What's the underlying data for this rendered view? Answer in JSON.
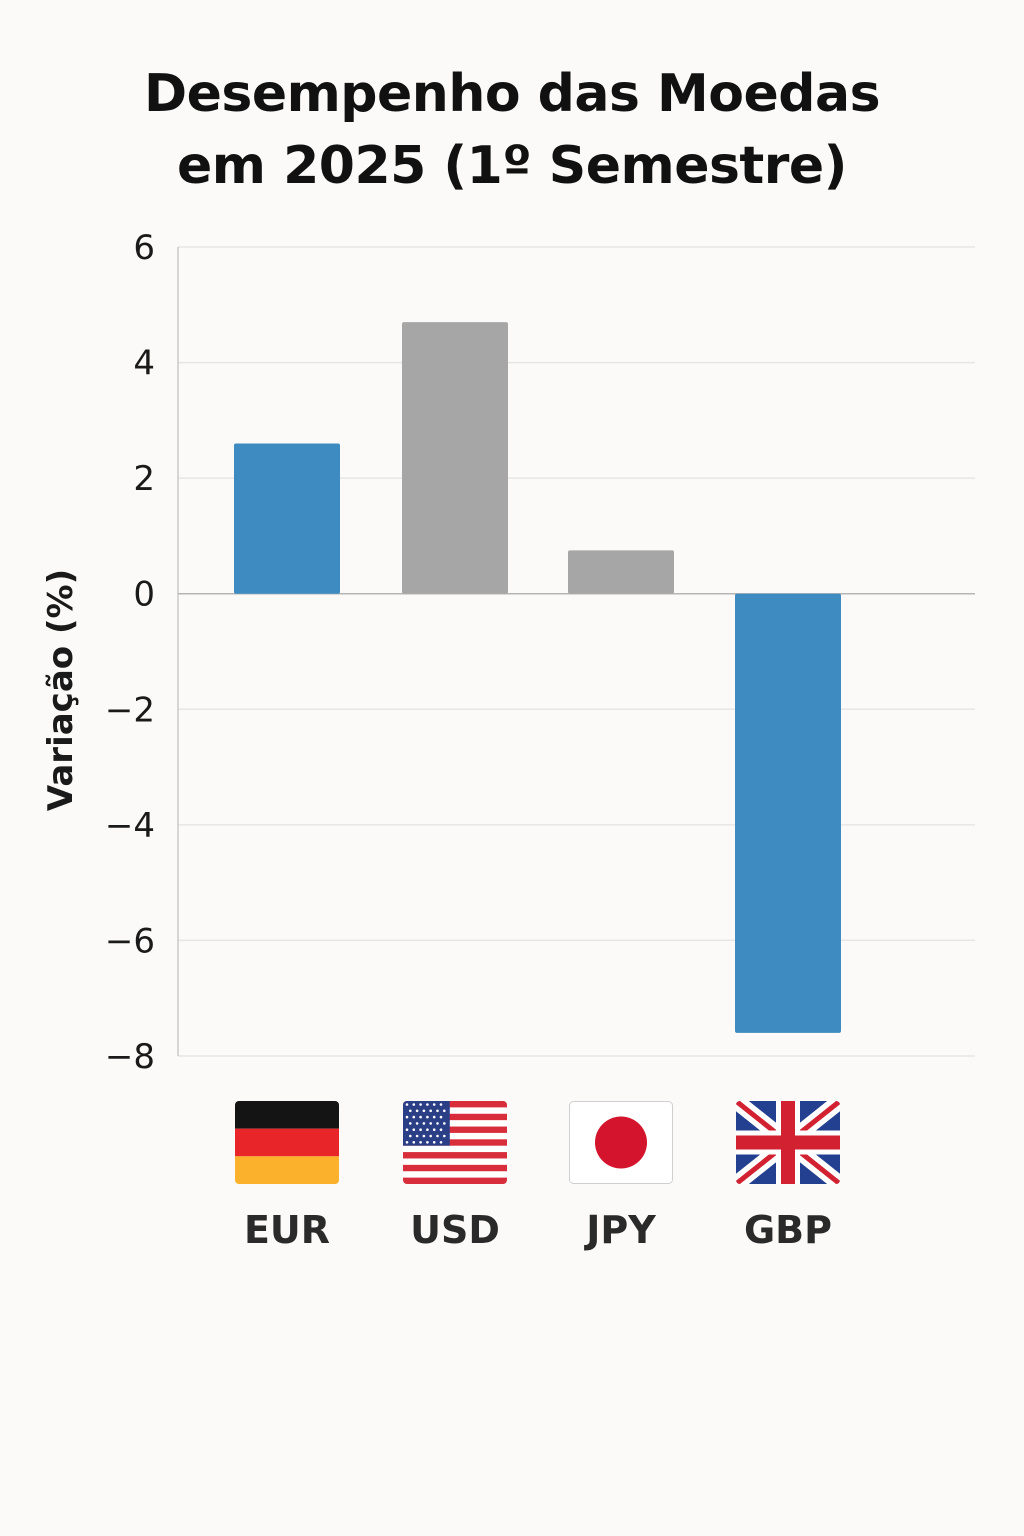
{
  "chart_data": {
    "type": "bar",
    "title_lines": [
      "Desempenho das Moedas",
      "em 2025 (1º Semestre)"
    ],
    "ylabel": "Variação (%)",
    "xlabel": "",
    "ylim": [
      -8,
      6
    ],
    "yticks": [
      6,
      4,
      2,
      0,
      -2,
      -4,
      -6,
      -8
    ],
    "ytick_labels": [
      "6",
      "4",
      "2",
      "0",
      "−2",
      "−4",
      "−6",
      "−8"
    ],
    "grid": true,
    "categories": [
      "EUR",
      "USD",
      "JPY",
      "GBP"
    ],
    "values": [
      2.6,
      4.7,
      0.75,
      -7.6
    ],
    "bar_colors": [
      "#3d8bc0",
      "#a6a6a6",
      "#a6a6a6",
      "#3d8bc0"
    ],
    "flags": [
      "germany-flag",
      "usa-flag",
      "japan-flag",
      "uk-flag"
    ]
  }
}
